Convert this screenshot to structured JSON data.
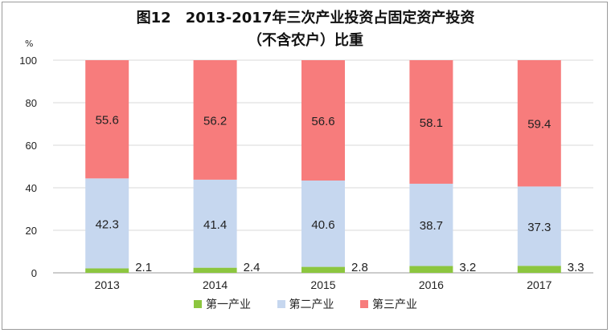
{
  "chart_data": {
    "type": "bar",
    "stacked": true,
    "title": "图12　2013-2017年三次产业投资占固定资产投资",
    "subtitle": "（不含农户）比重",
    "ylabel": "%",
    "xlabel": "",
    "ylim": [
      0,
      100
    ],
    "yticks": [
      0,
      20,
      40,
      60,
      80,
      100
    ],
    "categories": [
      "2013",
      "2014",
      "2015",
      "2016",
      "2017"
    ],
    "grid": true,
    "legend_position": "bottom",
    "series": [
      {
        "name": "第一产业",
        "values": [
          2.1,
          2.4,
          2.8,
          3.2,
          3.3
        ],
        "color": "#8cc63f"
      },
      {
        "name": "第二产业",
        "values": [
          42.3,
          41.4,
          40.6,
          38.7,
          37.3
        ],
        "color": "#c6d7ef"
      },
      {
        "name": "第三产业",
        "values": [
          55.6,
          56.2,
          56.6,
          58.1,
          59.4
        ],
        "color": "#f77c7c"
      }
    ]
  }
}
